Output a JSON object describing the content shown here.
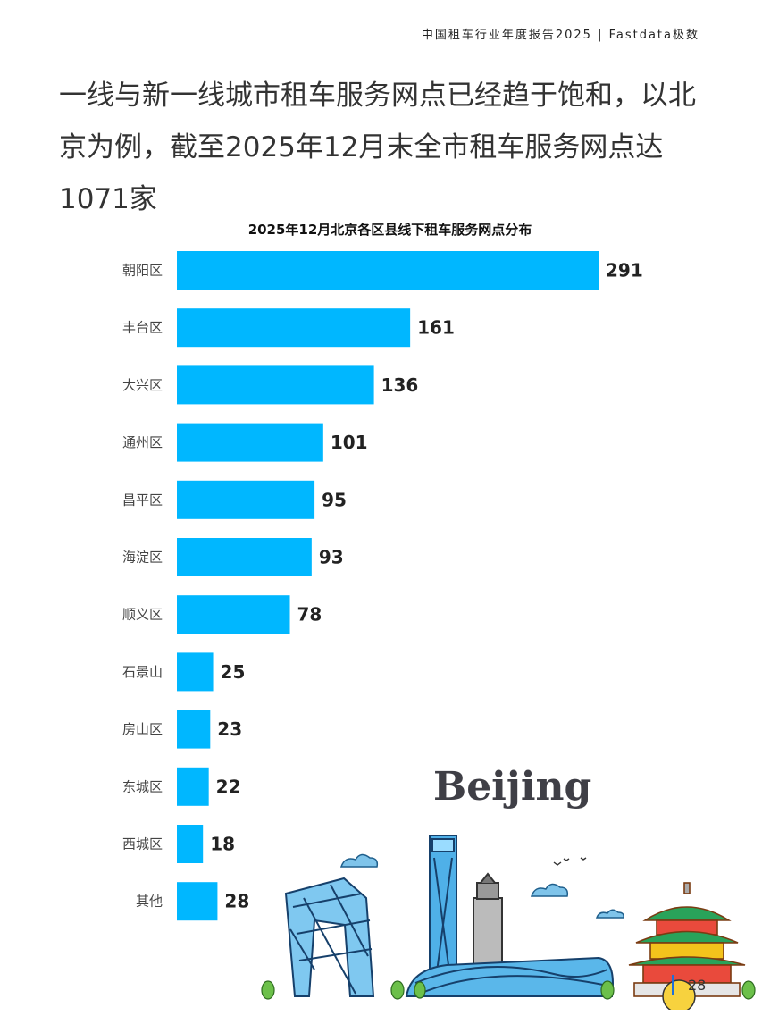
{
  "header": {
    "brand": "中国租车行业年度报告2025 | Fastdata极数"
  },
  "headline": "一线与新一线城市租车服务网点已经趋于饱和，以北京为例，截至2025年12月末全市租车服务网点达1071家",
  "chart_data": {
    "type": "bar",
    "orientation": "horizontal",
    "title": "2025年12月北京各区县线下租车服务网点分布",
    "categories": [
      "朝阳区",
      "丰台区",
      "大兴区",
      "通州区",
      "昌平区",
      "海淀区",
      "顺义区",
      "石景山",
      "房山区",
      "东城区",
      "西城区",
      "其他"
    ],
    "values": [
      291,
      161,
      136,
      101,
      95,
      93,
      78,
      25,
      23,
      22,
      18,
      28
    ],
    "bar_color": "#00b7ff",
    "xlim": [
      0,
      291
    ],
    "grid": false,
    "legend": "none"
  },
  "illustration": {
    "word": "Beijing"
  },
  "footer": {
    "page": "28"
  }
}
